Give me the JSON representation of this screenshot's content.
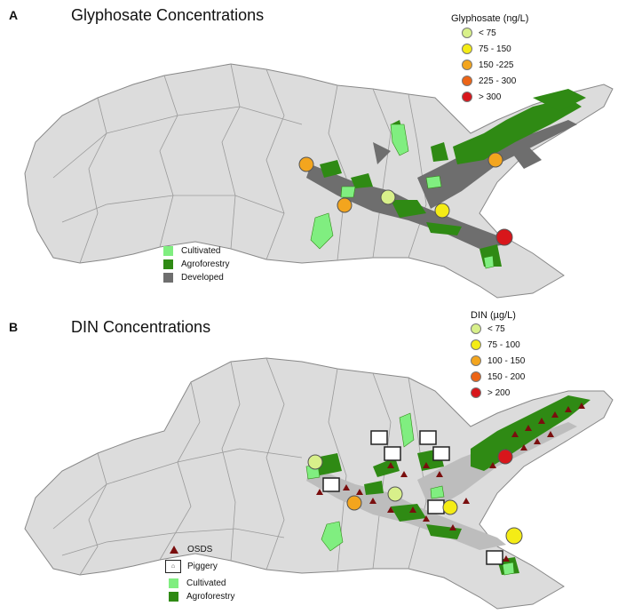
{
  "panel_a": {
    "letter": "A",
    "title": "Glyphosate Concentrations",
    "legend_title": "Glyphosate (ng/L)",
    "classes": [
      {
        "label": "< 75",
        "color": "#d8f08a"
      },
      {
        "label": "75 - 150",
        "color": "#f4ec16"
      },
      {
        "label": "150 -225",
        "color": "#f3a51e"
      },
      {
        "label": "225 - 300",
        "color": "#ec6416"
      },
      {
        "label": "> 300",
        "color": "#d8161b"
      }
    ],
    "landuse": [
      {
        "label": "Cultivated",
        "color": "#80ee80"
      },
      {
        "label": "Agroforestry",
        "color": "#2f8a14"
      },
      {
        "label": "Developed",
        "color": "#6e6e6e"
      }
    ]
  },
  "panel_b": {
    "letter": "B",
    "title": "DIN Concentrations",
    "legend_title": "DIN (µg/L)",
    "classes": [
      {
        "label": "< 75",
        "color": "#d8f08a"
      },
      {
        "label": "75 - 100",
        "color": "#f4ec16"
      },
      {
        "label": "100 - 150",
        "color": "#f3a51e"
      },
      {
        "label": "150 - 200",
        "color": "#ec6416"
      },
      {
        "label": "> 200",
        "color": "#d8161b"
      }
    ],
    "features": [
      {
        "label": "OSDS",
        "color": "#7a0e0e"
      },
      {
        "label": "Piggery",
        "color": "#222222"
      },
      {
        "label": "Cultivated",
        "color": "#80ee80"
      },
      {
        "label": "Agroforestry",
        "color": "#2f8a14"
      }
    ]
  }
}
